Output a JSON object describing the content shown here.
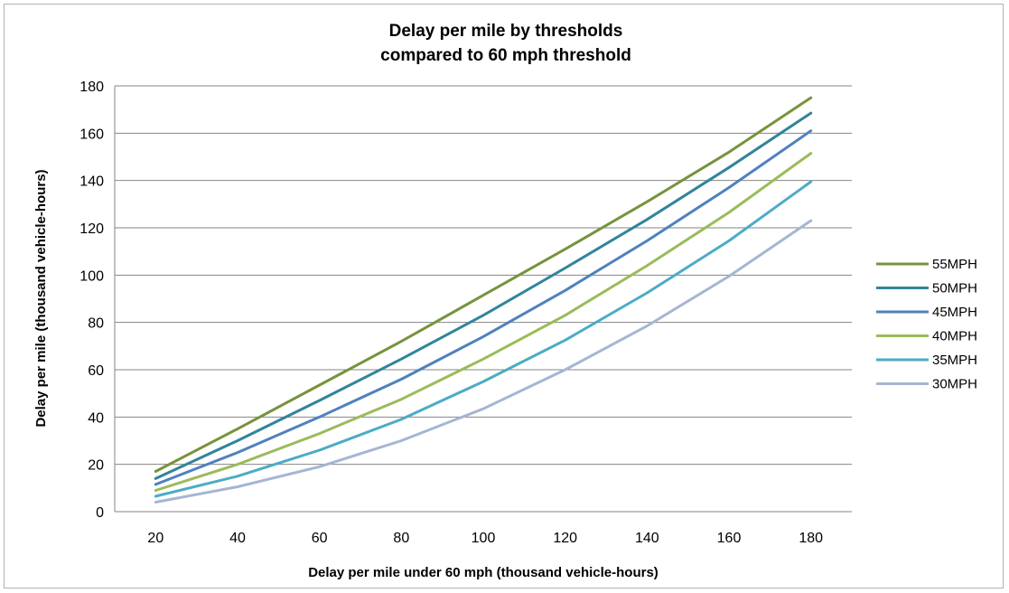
{
  "chart_data": {
    "type": "line",
    "title_line1": "Delay per mile by thresholds",
    "title_line2": "compared to 60 mph threshold",
    "xlabel": "Delay per mile under 60 mph (thousand vehicle-hours)",
    "ylabel": "Delay per mile (thousand vehicle-hours)",
    "x": [
      20,
      40,
      60,
      80,
      100,
      120,
      140,
      160,
      180
    ],
    "ylim": [
      0,
      180
    ],
    "yticks": [
      0,
      20,
      40,
      60,
      80,
      100,
      120,
      140,
      160,
      180
    ],
    "grid": true,
    "legend_position": "right",
    "series": [
      {
        "name": "55MPH",
        "color": "#77933C",
        "values": [
          17,
          35,
          53.5,
          72,
          91.5,
          111,
          131,
          152,
          175
        ]
      },
      {
        "name": "50MPH",
        "color": "#31849B",
        "values": [
          14,
          30,
          47,
          64.5,
          83,
          103,
          123.5,
          145.5,
          168.5
        ]
      },
      {
        "name": "45MPH",
        "color": "#4F81BD",
        "values": [
          11.5,
          25,
          40,
          56,
          74,
          93.5,
          114.5,
          137,
          161
        ]
      },
      {
        "name": "40MPH",
        "color": "#9BBB59",
        "values": [
          9,
          20,
          33,
          47.5,
          64.5,
          83,
          104,
          126.5,
          151.5
        ]
      },
      {
        "name": "35MPH",
        "color": "#4BACC6",
        "values": [
          6.5,
          15,
          26,
          39,
          55,
          72.5,
          92.5,
          114.5,
          139.5
        ]
      },
      {
        "name": "30MPH",
        "color": "#A5B6D3",
        "values": [
          4,
          10.5,
          19,
          30,
          43.5,
          60,
          78.5,
          99.5,
          123
        ]
      }
    ]
  }
}
